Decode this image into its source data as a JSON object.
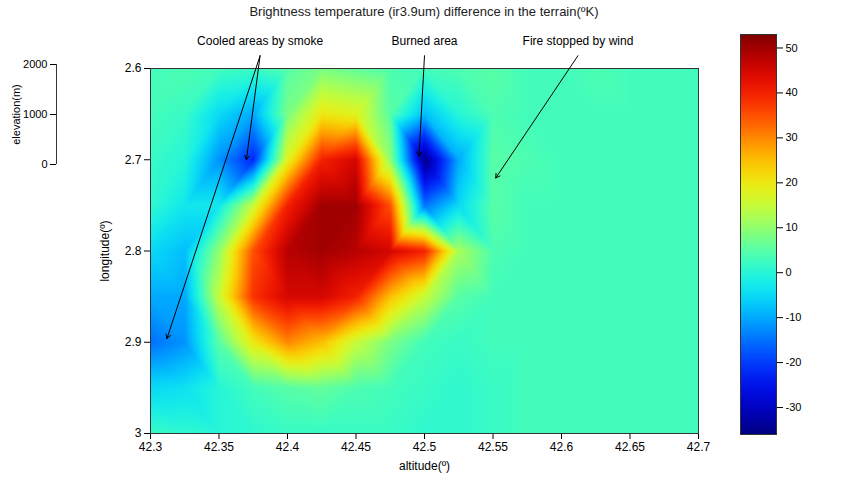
{
  "chart_data": {
    "type": "surface",
    "title": "Brightness temperature (ir3.9um) difference in the terrain(ºK)",
    "x_label": "altitude(º)",
    "y_label": "longitude(º)",
    "z_label": "elevation(m)",
    "x": [
      42.3,
      42.325,
      42.35,
      42.375,
      42.4,
      42.425,
      42.45,
      42.475,
      42.5,
      42.525,
      42.55,
      42.575,
      42.6,
      42.625,
      42.65,
      42.675,
      42.7
    ],
    "y": [
      2.6,
      2.65,
      2.7,
      2.75,
      2.8,
      2.85,
      2.9,
      2.95,
      3
    ],
    "values": [
      [
        3,
        4,
        3,
        2,
        5,
        8,
        6,
        4,
        3,
        4,
        5,
        3,
        3,
        4,
        3,
        3,
        3
      ],
      [
        3,
        2,
        -5,
        -10,
        8,
        20,
        18,
        5,
        -8,
        0,
        4,
        3,
        3,
        3,
        3,
        3,
        3
      ],
      [
        2,
        0,
        -12,
        -22,
        18,
        40,
        45,
        10,
        -35,
        -10,
        5,
        4,
        3,
        3,
        3,
        3,
        3
      ],
      [
        1,
        -3,
        -3,
        15,
        40,
        50,
        50,
        35,
        -15,
        -5,
        5,
        3,
        3,
        3,
        3,
        3,
        3
      ],
      [
        -5,
        -8,
        10,
        35,
        48,
        50,
        48,
        45,
        40,
        12,
        4,
        3,
        3,
        3,
        3,
        3,
        3
      ],
      [
        -10,
        -10,
        15,
        38,
        45,
        45,
        40,
        25,
        15,
        5,
        3,
        3,
        3,
        3,
        3,
        3,
        3
      ],
      [
        -15,
        -12,
        5,
        20,
        30,
        25,
        15,
        8,
        3,
        2,
        3,
        3,
        3,
        3,
        3,
        3,
        3
      ],
      [
        -5,
        -4,
        0,
        3,
        5,
        6,
        4,
        3,
        2,
        1,
        2,
        3,
        3,
        3,
        3,
        3,
        3
      ],
      [
        2,
        1,
        0,
        1,
        2,
        2,
        2,
        2,
        1,
        1,
        2,
        3,
        3,
        3,
        3,
        3,
        3
      ]
    ],
    "xlim": [
      42.3,
      42.7
    ],
    "xticks": [
      42.3,
      42.35,
      42.4,
      42.45,
      42.5,
      42.55,
      42.6,
      42.65,
      42.7
    ],
    "ylim": [
      2.6,
      3
    ],
    "yticks": [
      2.6,
      2.7,
      2.8,
      2.9,
      3
    ],
    "zlim": [
      0,
      2000
    ],
    "zticks": [
      0,
      1000,
      2000
    ],
    "color_range": [
      -36,
      53
    ],
    "color_ticks": [
      -30,
      -20,
      -10,
      0,
      10,
      20,
      30,
      40,
      50
    ],
    "annotations": [
      {
        "text": "Cooled areas by smoke"
      },
      {
        "text": "Burned area"
      },
      {
        "text": "Fire stopped by wind"
      }
    ]
  }
}
